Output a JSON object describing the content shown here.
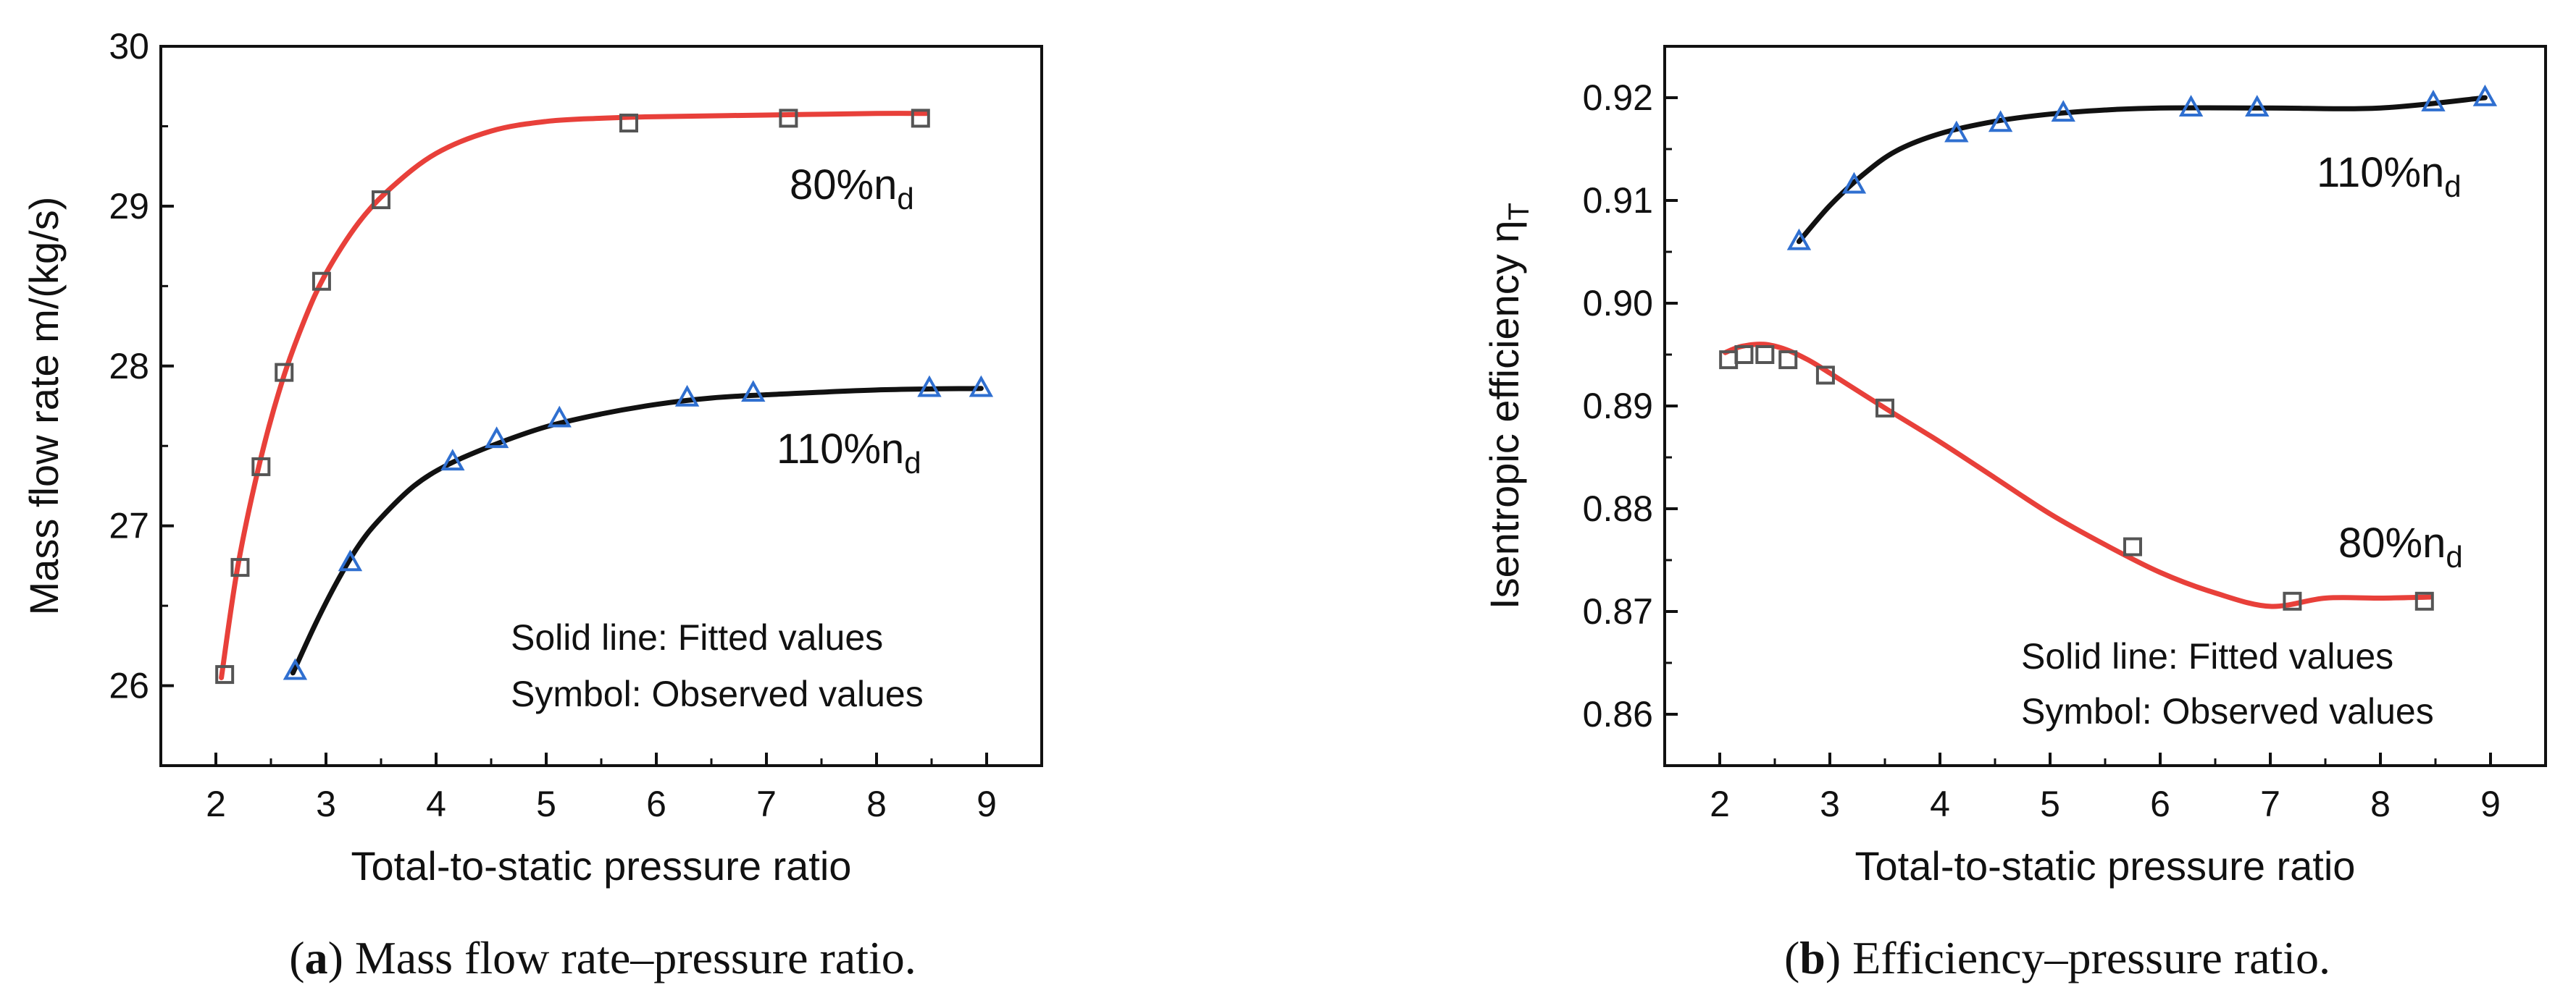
{
  "chart_data": [
    {
      "type": "line",
      "caption": {
        "open": "(",
        "letter": "a",
        "rest": ") Mass flow rate–pressure ratio."
      },
      "title": "",
      "xlabel": "Total-to-static pressure ratio",
      "ylabel": "Mass flow rate m/(kg/s)",
      "xlim": [
        1.5,
        9.5
      ],
      "ylim": [
        25.5,
        30
      ],
      "xticks": [
        "2",
        "3",
        "4",
        "5",
        "6",
        "7",
        "8",
        "9"
      ],
      "yticks": [
        "26",
        "27",
        "28",
        "29",
        "30"
      ],
      "series": [
        {
          "name": "80%n_d",
          "label_main": "80%n",
          "label_sub": "d",
          "color": "#e8403a",
          "marker": "square",
          "marker_color": "#555555",
          "observed_x": [
            2.08,
            2.22,
            2.41,
            2.62,
            2.96,
            3.5,
            5.75,
            7.2,
            8.4
          ],
          "observed_y": [
            26.07,
            26.74,
            27.37,
            27.96,
            28.53,
            29.04,
            29.52,
            29.55,
            29.55
          ],
          "fitted_x": [
            2.05,
            2.2,
            2.4,
            2.6,
            2.8,
            3.0,
            3.3,
            3.6,
            4.0,
            4.5,
            5.0,
            5.5,
            6.0,
            7.0,
            8.0,
            8.45
          ],
          "fitted_y": [
            26.05,
            26.75,
            27.4,
            27.9,
            28.28,
            28.58,
            28.9,
            29.12,
            29.33,
            29.47,
            29.53,
            29.55,
            29.56,
            29.57,
            29.58,
            29.58
          ]
        },
        {
          "name": "110%n_d",
          "label_main": "110%n",
          "label_sub": "d",
          "color": "#111111",
          "marker": "triangle",
          "marker_color": "#2f6fd0",
          "observed_x": [
            2.72,
            3.22,
            4.15,
            4.55,
            5.12,
            6.28,
            6.88,
            8.48,
            8.95
          ],
          "observed_y": [
            26.09,
            26.77,
            27.4,
            27.54,
            27.67,
            27.8,
            27.83,
            27.86,
            27.86
          ],
          "fitted_x": [
            2.7,
            2.9,
            3.1,
            3.3,
            3.5,
            3.8,
            4.1,
            4.5,
            5.0,
            5.5,
            6.0,
            6.5,
            7.0,
            8.0,
            8.95
          ],
          "fitted_y": [
            26.08,
            26.38,
            26.65,
            26.88,
            27.05,
            27.25,
            27.38,
            27.5,
            27.62,
            27.7,
            27.76,
            27.8,
            27.82,
            27.85,
            27.86
          ]
        }
      ],
      "legend": [
        "Solid line: Fitted values",
        "Symbol: Observed values"
      ]
    },
    {
      "type": "line",
      "caption": {
        "open": "(",
        "letter": "b",
        "rest": ") Efficiency–pressure ratio."
      },
      "title": "",
      "xlabel": "Total-to-static pressure ratio",
      "ylabel": "Isentropic efficiency η",
      "ylabel_sub": "T",
      "xlim": [
        1.5,
        9.5
      ],
      "ylim": [
        0.855,
        0.925
      ],
      "xticks": [
        "2",
        "3",
        "4",
        "5",
        "6",
        "7",
        "8",
        "9"
      ],
      "yticks": [
        "0.86",
        "0.87",
        "0.88",
        "0.89",
        "0.90",
        "0.91",
        "0.92"
      ],
      "series": [
        {
          "name": "110%n_d",
          "label_main": "110%n",
          "label_sub": "d",
          "color": "#111111",
          "marker": "triangle",
          "marker_color": "#2f6fd0",
          "observed_x": [
            2.72,
            3.22,
            4.15,
            4.55,
            5.12,
            6.28,
            6.88,
            8.48,
            8.95
          ],
          "observed_y": [
            0.906,
            0.9115,
            0.9165,
            0.9175,
            0.9185,
            0.919,
            0.919,
            0.9195,
            0.92
          ],
          "fitted_x": [
            2.72,
            3.0,
            3.3,
            3.6,
            4.0,
            4.5,
            5.0,
            5.5,
            6.0,
            7.0,
            8.0,
            8.95
          ],
          "fitted_y": [
            0.906,
            0.9095,
            0.9125,
            0.9148,
            0.9165,
            0.9177,
            0.9184,
            0.9188,
            0.919,
            0.919,
            0.919,
            0.92
          ]
        },
        {
          "name": "80%n_d",
          "label_main": "80%n",
          "label_sub": "d",
          "color": "#e8403a",
          "marker": "square",
          "marker_color": "#555555",
          "observed_x": [
            2.08,
            2.22,
            2.41,
            2.62,
            2.96,
            3.5,
            5.75,
            7.2,
            8.4
          ],
          "observed_y": [
            0.8945,
            0.895,
            0.895,
            0.8945,
            0.893,
            0.8898,
            0.8763,
            0.871,
            0.871
          ],
          "fitted_x": [
            2.05,
            2.2,
            2.4,
            2.6,
            2.8,
            3.0,
            3.5,
            4.0,
            4.5,
            5.0,
            5.5,
            6.0,
            6.5,
            7.0,
            7.5,
            8.0,
            8.45
          ],
          "fitted_y": [
            0.8952,
            0.8958,
            0.896,
            0.8955,
            0.8945,
            0.8932,
            0.8898,
            0.8865,
            0.883,
            0.8795,
            0.8765,
            0.8738,
            0.8718,
            0.8705,
            0.8713,
            0.8713,
            0.8714
          ]
        }
      ],
      "legend": [
        "Solid line: Fitted values",
        "Symbol: Observed values"
      ]
    }
  ]
}
